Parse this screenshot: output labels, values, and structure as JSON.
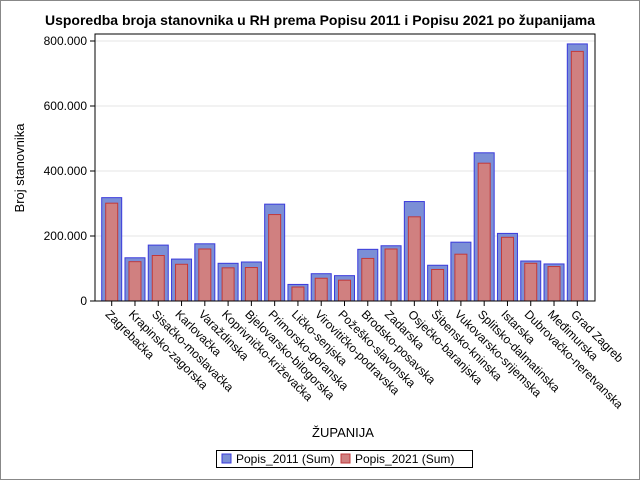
{
  "chart_data": {
    "type": "bar",
    "title": "Usporedba broja stanovnika u RH prema Popisu 2011 i Popisu 2021 po županijama",
    "xlabel": "ŽUPANIJA",
    "ylabel": "Broj stanovnika",
    "ylim": [
      0,
      800000
    ],
    "yticks": [
      0,
      200000,
      400000,
      600000,
      800000
    ],
    "ytick_labels": [
      "0",
      "200.000",
      "400.000",
      "600.000",
      "800.000"
    ],
    "grid": true,
    "legend_position": "bottom",
    "categories": [
      "Zagrebačka",
      "Krapinsko-zagorska",
      "Sisačko-moslavačka",
      "Karlovačka",
      "Varaždinska",
      "Koprivničko-križevačka",
      "Bjelovarsko-bilogorska",
      "Primorsko-goranska",
      "Ličko-senjska",
      "Virovitičko-podravska",
      "Požeško-slavonska",
      "Brodsko-posavska",
      "Zadarska",
      "Osječko-baranjska",
      "Šibensko-kninska",
      "Vukovarsko-srijemska",
      "Splitsko-dalmatinska",
      "Istarska",
      "Dubrovačko-neretvanska",
      "Međimurska",
      "Grad Zagreb"
    ],
    "series": [
      {
        "name": "Popis_2011 (Sum)",
        "color": "#7b8fd6",
        "edge": "#3a3adc",
        "values": [
          318000,
          133000,
          172000,
          129000,
          176000,
          116000,
          120000,
          298000,
          51000,
          84000,
          78000,
          159000,
          170000,
          306000,
          110000,
          181000,
          456000,
          208000,
          123000,
          114000,
          791000
        ]
      },
      {
        "name": "Popis_2021 (Sum)",
        "color": "#d08080",
        "edge": "#c0393b",
        "values": [
          301000,
          121000,
          140000,
          113000,
          160000,
          102000,
          103000,
          266000,
          43000,
          70000,
          64000,
          131000,
          160000,
          259000,
          97000,
          144000,
          424000,
          196000,
          116000,
          106000,
          768000
        ]
      }
    ]
  }
}
